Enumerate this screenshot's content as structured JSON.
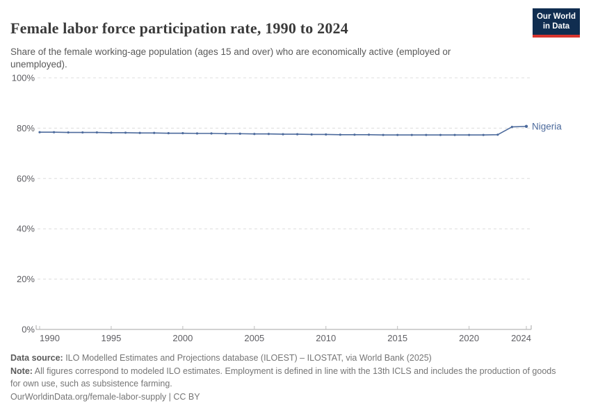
{
  "header": {
    "title": "Female labor force participation rate, 1990 to 2024",
    "subtitle": "Share of the female working-age population (ages 15 and over) who are economically active (employed or unemployed).",
    "logo": {
      "line1": "Our World",
      "line2": "in Data",
      "bg_color": "#102d50",
      "stripe_color": "#d8352f"
    }
  },
  "chart_data": {
    "type": "line",
    "title": "Female labor force participation rate, 1990 to 2024",
    "x": [
      1990,
      1991,
      1992,
      1993,
      1994,
      1995,
      1996,
      1997,
      1998,
      1999,
      2000,
      2001,
      2002,
      2003,
      2004,
      2005,
      2006,
      2007,
      2008,
      2009,
      2010,
      2011,
      2012,
      2013,
      2014,
      2015,
      2016,
      2017,
      2018,
      2019,
      2020,
      2021,
      2022,
      2023,
      2024
    ],
    "series": [
      {
        "name": "Nigeria",
        "color": "#4C6A9C",
        "values": [
          78.4,
          78.4,
          78.3,
          78.3,
          78.3,
          78.2,
          78.2,
          78.1,
          78.1,
          78.0,
          78.0,
          77.9,
          77.9,
          77.8,
          77.8,
          77.7,
          77.7,
          77.6,
          77.6,
          77.5,
          77.5,
          77.4,
          77.4,
          77.4,
          77.3,
          77.3,
          77.3,
          77.3,
          77.3,
          77.3,
          77.3,
          77.3,
          77.4,
          80.5,
          80.7
        ]
      }
    ],
    "xlabel": "",
    "ylabel": "",
    "ylim": [
      0,
      100
    ],
    "yticks": [
      0,
      20,
      40,
      60,
      80,
      100
    ],
    "ytick_suffix": "%",
    "xticks": [
      1990,
      1995,
      2000,
      2005,
      2010,
      2015,
      2020,
      2024
    ],
    "grid": "horizontal-dashed",
    "legend_position": "end-of-line",
    "grid_color": "#dcdcdc",
    "axis_color": "#a5a5a5",
    "tick_label_color": "#5e5e63"
  },
  "footer": {
    "datasource_label": "Data source:",
    "datasource_text": " ILO Modelled Estimates and Projections database (ILOEST) – ILOSTAT, via World Bank (2025)",
    "note_label": "Note:",
    "note_text": " All figures correspond to modeled ILO estimates. Employment is defined in line with the 13th ICLS and includes the production of goods for own use, such as subsistence farming.",
    "citation": "OurWorldinData.org/female-labor-supply | CC BY"
  }
}
